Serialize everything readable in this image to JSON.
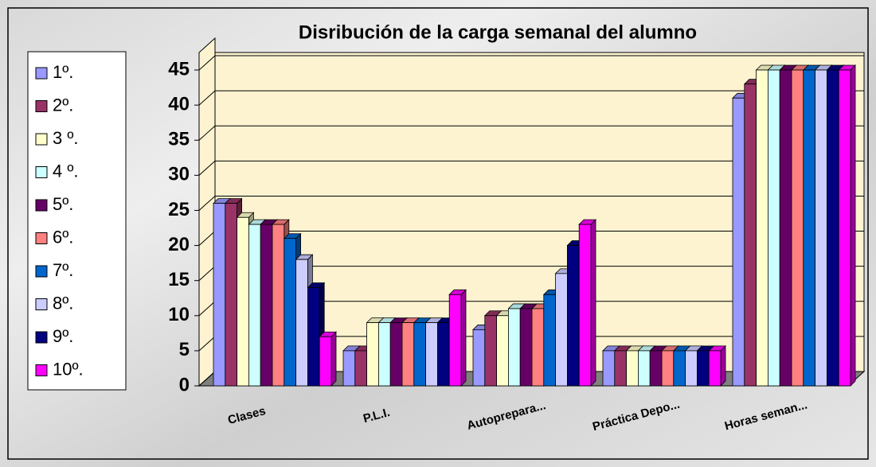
{
  "chart_data": {
    "type": "bar3d",
    "title": "Disribución de la carga semanal del alumno",
    "categories": [
      "Clases",
      "P.L.I.",
      "Autoprepara...",
      "Práctica Depo...",
      "Horas seman..."
    ],
    "series": [
      {
        "name": "1º.",
        "color": "#9999ff",
        "values": [
          26,
          5,
          8,
          5,
          41
        ]
      },
      {
        "name": "2º.",
        "color": "#993366",
        "values": [
          26,
          5,
          10,
          5,
          43
        ]
      },
      {
        "name": "3 º.",
        "color": "#ffffcc",
        "values": [
          24,
          9,
          10,
          5,
          45
        ]
      },
      {
        "name": "4 º.",
        "color": "#ccffff",
        "values": [
          23,
          9,
          11,
          5,
          45
        ]
      },
      {
        "name": "5º.",
        "color": "#660066",
        "values": [
          23,
          9,
          11,
          5,
          45
        ]
      },
      {
        "name": "6º.",
        "color": "#ff8080",
        "values": [
          23,
          9,
          11,
          5,
          45
        ]
      },
      {
        "name": "7º.",
        "color": "#0066cc",
        "values": [
          21,
          9,
          13,
          5,
          45
        ]
      },
      {
        "name": "8º.",
        "color": "#ccccff",
        "values": [
          18,
          9,
          16,
          5,
          45
        ]
      },
      {
        "name": "9º.",
        "color": "#000080",
        "values": [
          14,
          9,
          20,
          5,
          45
        ]
      },
      {
        "name": "10º.",
        "color": "#ff00ff",
        "values": [
          7,
          13,
          23,
          5,
          45
        ]
      }
    ],
    "ylim": [
      0,
      45
    ],
    "yticks": [
      0,
      5,
      10,
      15,
      20,
      25,
      30,
      35,
      40,
      45
    ],
    "grid": true,
    "legend": "left"
  }
}
